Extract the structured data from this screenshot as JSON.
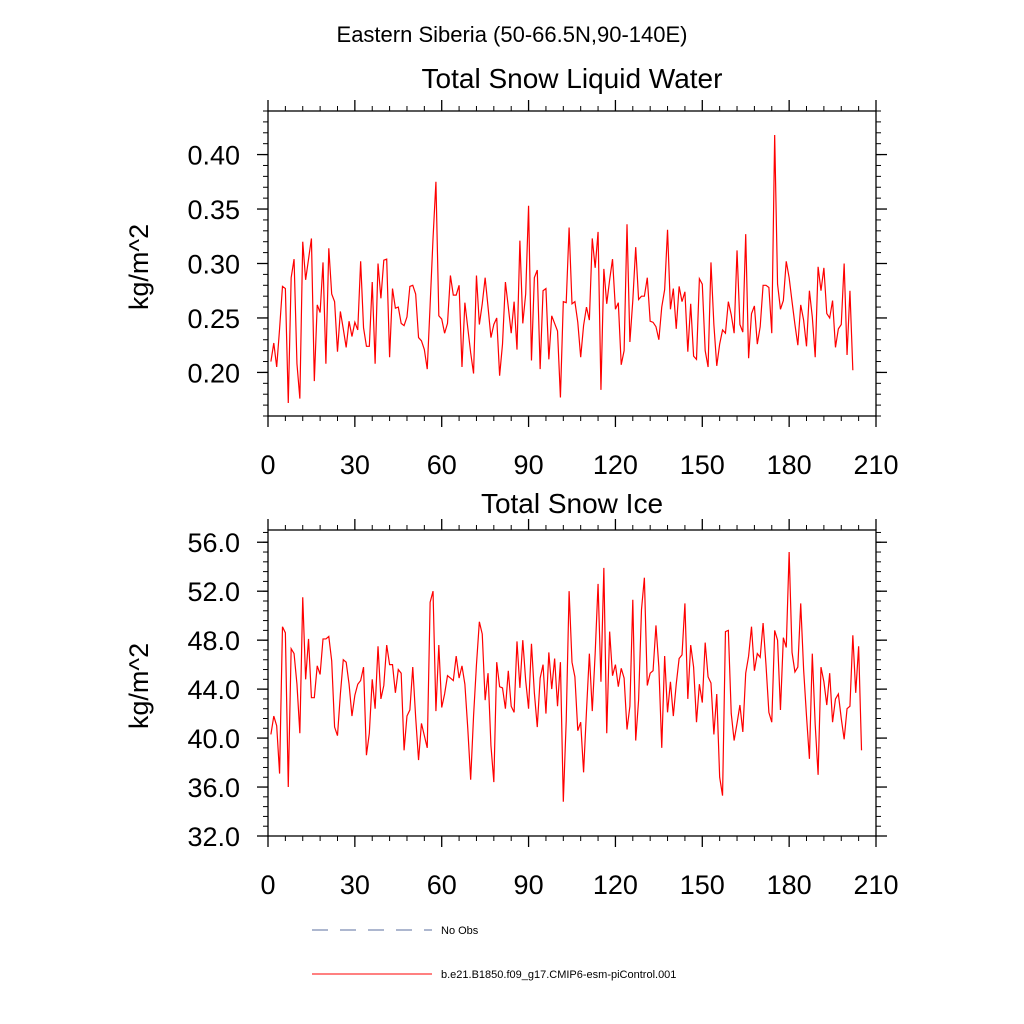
{
  "figure": {
    "super_title": "Eastern Siberia (50-66.5N,90-140E)"
  },
  "colors": {
    "series": "#ff0000",
    "obs": "#5b6f9f",
    "frame": "#000000"
  },
  "chart_data": [
    {
      "type": "line",
      "title": "Total Snow Liquid Water",
      "xlabel": "",
      "ylabel": "kg/m^2",
      "xlim": [
        0,
        210
      ],
      "ylim": [
        0.16,
        0.44
      ],
      "xticks": [
        0,
        30,
        60,
        90,
        120,
        150,
        180,
        210
      ],
      "yticks": [
        0.2,
        0.25,
        0.3,
        0.35,
        0.4
      ],
      "ytick_labels": [
        "0.20",
        "0.25",
        "0.30",
        "0.35",
        "0.40"
      ],
      "series": [
        {
          "name": "b.e21.B1850.f09_g17.CMIP6-esm-piControl.001",
          "values": [
            0.21,
            0.227,
            0.205,
            0.24,
            0.279,
            0.277,
            0.172,
            0.287,
            0.304,
            0.208,
            0.176,
            0.32,
            0.285,
            0.304,
            0.323,
            0.192,
            0.262,
            0.255,
            0.301,
            0.208,
            0.314,
            0.272,
            0.265,
            0.219,
            0.256,
            0.24,
            0.223,
            0.247,
            0.233,
            0.246,
            0.239,
            0.302,
            0.241,
            0.224,
            0.224,
            0.283,
            0.208,
            0.3,
            0.268,
            0.303,
            0.304,
            0.214,
            0.277,
            0.259,
            0.26,
            0.245,
            0.243,
            0.251,
            0.279,
            0.28,
            0.272,
            0.232,
            0.229,
            0.221,
            0.203,
            0.262,
            0.323,
            0.375,
            0.252,
            0.249,
            0.236,
            0.245,
            0.289,
            0.271,
            0.271,
            0.28,
            0.205,
            0.264,
            0.241,
            0.218,
            0.199,
            0.289,
            0.244,
            0.263,
            0.287,
            0.26,
            0.232,
            0.244,
            0.25,
            0.197,
            0.226,
            0.283,
            0.26,
            0.236,
            0.265,
            0.221,
            0.321,
            0.245,
            0.272,
            0.353,
            0.211,
            0.287,
            0.294,
            0.203,
            0.275,
            0.277,
            0.212,
            0.252,
            0.245,
            0.238,
            0.177,
            0.265,
            0.264,
            0.333,
            0.263,
            0.265,
            0.246,
            0.214,
            0.243,
            0.26,
            0.248,
            0.323,
            0.296,
            0.329,
            0.184,
            0.295,
            0.263,
            0.285,
            0.304,
            0.258,
            0.264,
            0.207,
            0.22,
            0.336,
            0.228,
            0.266,
            0.315,
            0.267,
            0.27,
            0.27,
            0.287,
            0.247,
            0.246,
            0.242,
            0.23,
            0.26,
            0.276,
            0.331,
            0.258,
            0.277,
            0.24,
            0.279,
            0.265,
            0.274,
            0.219,
            0.263,
            0.215,
            0.212,
            0.286,
            0.281,
            0.22,
            0.205,
            0.301,
            0.244,
            0.206,
            0.226,
            0.239,
            0.236,
            0.265,
            0.253,
            0.236,
            0.312,
            0.244,
            0.237,
            0.327,
            0.213,
            0.254,
            0.261,
            0.226,
            0.242,
            0.28,
            0.28,
            0.278,
            0.236,
            0.418,
            0.281,
            0.258,
            0.266,
            0.302,
            0.287,
            0.265,
            0.244,
            0.225,
            0.262,
            0.248,
            0.224,
            0.275,
            0.251,
            0.214,
            0.297,
            0.275,
            0.296,
            0.254,
            0.25,
            0.266,
            0.223,
            0.24,
            0.244,
            0.3,
            0.216,
            0.275,
            0.202
          ]
        }
      ]
    },
    {
      "type": "line",
      "title": "Total Snow Ice",
      "xlabel": "",
      "ylabel": "kg/m^2",
      "xlim": [
        0,
        210
      ],
      "ylim": [
        32.0,
        57.0
      ],
      "xticks": [
        0,
        30,
        60,
        90,
        120,
        150,
        180,
        210
      ],
      "yticks": [
        32,
        36,
        40,
        44,
        48,
        52,
        56
      ],
      "ytick_labels": [
        "32.0",
        "36.0",
        "40.0",
        "44.0",
        "48.0",
        "52.0",
        "56.0"
      ],
      "series": [
        {
          "name": "b.e21.B1850.f09_g17.CMIP6-esm-piControl.001",
          "values": [
            40.3,
            41.8,
            41.0,
            37.1,
            49.1,
            48.6,
            36.0,
            47.3,
            46.9,
            44.4,
            40.4,
            51.5,
            44.8,
            48.1,
            43.3,
            43.3,
            45.9,
            45.2,
            48.1,
            48.1,
            48.3,
            46.3,
            40.9,
            40.2,
            43.6,
            46.4,
            46.2,
            44.4,
            41.8,
            43.5,
            44.4,
            44.7,
            45.8,
            38.6,
            40.4,
            44.8,
            42.4,
            47.5,
            43.2,
            44.3,
            47.6,
            46.0,
            46.0,
            43.7,
            45.6,
            45.3,
            39.0,
            41.8,
            42.3,
            45.8,
            41.7,
            38.2,
            41.2,
            40.2,
            39.2,
            51.1,
            52.0,
            42.2,
            47.6,
            42.5,
            43.6,
            45.1,
            44.9,
            44.7,
            46.7,
            44.9,
            45.9,
            44.4,
            40.8,
            36.6,
            41.8,
            46.0,
            49.5,
            48.5,
            43.1,
            45.3,
            39.4,
            36.4,
            46.2,
            44.2,
            44.1,
            42.4,
            45.5,
            42.6,
            42.1,
            47.9,
            44.1,
            48.0,
            44.7,
            42.4,
            47.7,
            43.7,
            40.9,
            44.9,
            46.0,
            42.0,
            47.0,
            44.0,
            46.5,
            42.6,
            46.2,
            34.8,
            41.4,
            52.0,
            46.2,
            45.0,
            40.6,
            41.3,
            37.2,
            42.2,
            46.9,
            42.2,
            46.9,
            52.6,
            44.6,
            53.9,
            40.4,
            48.7,
            45.1,
            46.0,
            44.2,
            45.7,
            44.9,
            40.7,
            42.6,
            51.3,
            39.8,
            43.1,
            50.5,
            53.1,
            44.3,
            45.3,
            45.5,
            49.2,
            45.8,
            39.2,
            46.7,
            42.1,
            44.6,
            41.8,
            44.4,
            46.5,
            46.8,
            51.0,
            43.2,
            47.6,
            45.8,
            41.3,
            44.4,
            42.9,
            47.8,
            45.0,
            44.5,
            40.3,
            43.6,
            36.8,
            35.3,
            48.7,
            48.8,
            42.0,
            39.8,
            41.2,
            42.7,
            40.5,
            45.3,
            46.7,
            49.1,
            45.5,
            46.9,
            46.6,
            49.4,
            46.0,
            42.1,
            41.3,
            48.8,
            48.0,
            42.3,
            48.2,
            47.4,
            55.2,
            47.0,
            45.4,
            45.8,
            51.0,
            45.6,
            41.8,
            38.3,
            46.9,
            41.1,
            37.0,
            45.8,
            44.6,
            42.7,
            45.3,
            41.3,
            43.2,
            43.6,
            41.6,
            39.9,
            42.4,
            42.6,
            48.4,
            43.7,
            47.5,
            39.0
          ]
        }
      ]
    }
  ],
  "legend": {
    "items": [
      {
        "label": "No Obs",
        "style": "dashed"
      },
      {
        "label": "b.e21.B1850.f09_g17.CMIP6-esm-piControl.001",
        "style": "solid"
      }
    ]
  }
}
